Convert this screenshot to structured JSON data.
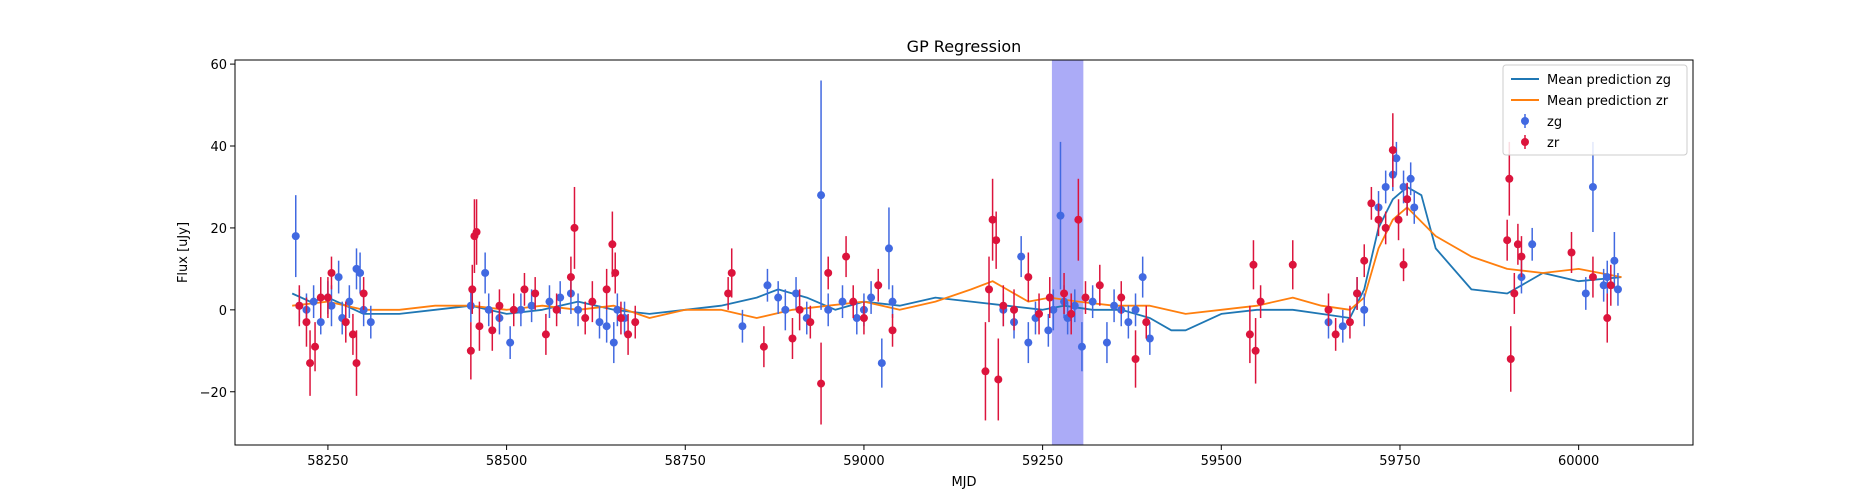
{
  "chart_data": {
    "type": "scatter",
    "title": "GP Regression",
    "xlabel": "MJD",
    "ylabel": "Flux [uJy]",
    "xlim": [
      58120,
      60160
    ],
    "ylim": [
      -33,
      61
    ],
    "x_ticks": [
      58250,
      58500,
      58750,
      59000,
      59250,
      59500,
      59750,
      60000
    ],
    "y_ticks": [
      -20,
      0,
      20,
      40,
      60
    ],
    "x_tick_labels": [
      "58250",
      "58500",
      "58750",
      "59000",
      "59250",
      "59500",
      "59750",
      "60000"
    ],
    "y_tick_labels": [
      "−20",
      "0",
      "20",
      "40",
      "60"
    ],
    "grid": false,
    "legend_position": "top-right",
    "shaded_region": {
      "x_start": 59263,
      "x_end": 59307,
      "color": "#a6a6f7"
    },
    "lines": [
      {
        "name": "Mean prediction zg",
        "color": "#1f77b4",
        "x": [
          58200,
          58225,
          58250,
          58275,
          58300,
          58350,
          58400,
          58450,
          58500,
          58550,
          58600,
          58650,
          58700,
          58750,
          58800,
          58850,
          58880,
          58920,
          58960,
          59000,
          59050,
          59100,
          59150,
          59200,
          59250,
          59280,
          59320,
          59360,
          59400,
          59430,
          59450,
          59500,
          59550,
          59600,
          59640,
          59680,
          59700,
          59720,
          59740,
          59760,
          59780,
          59800,
          59850,
          59900,
          59950,
          60000,
          60060
        ],
        "y": [
          4,
          2,
          3,
          1,
          -1,
          -1,
          0,
          1,
          -1,
          0,
          2,
          0,
          -1,
          0,
          1,
          3,
          5,
          3,
          0,
          2,
          1,
          3,
          2,
          1,
          0,
          1,
          0,
          0,
          -2,
          -5,
          -5,
          -1,
          0,
          0,
          -1,
          -2,
          5,
          20,
          27,
          30,
          28,
          15,
          5,
          4,
          9,
          7,
          8
        ]
      },
      {
        "name": "Mean prediction zr",
        "color": "#ff7f0e",
        "x": [
          58200,
          58250,
          58300,
          58350,
          58400,
          58450,
          58500,
          58550,
          58600,
          58650,
          58700,
          58750,
          58800,
          58850,
          58900,
          58950,
          59000,
          59050,
          59100,
          59150,
          59180,
          59200,
          59230,
          59260,
          59300,
          59350,
          59400,
          59450,
          59500,
          59550,
          59600,
          59640,
          59680,
          59700,
          59720,
          59740,
          59760,
          59800,
          59850,
          59900,
          59950,
          60000,
          60060
        ],
        "y": [
          1,
          2,
          0,
          0,
          1,
          1,
          0,
          1,
          0,
          1,
          -2,
          0,
          0,
          -2,
          0,
          1,
          2,
          0,
          2,
          5,
          7,
          5,
          2,
          3,
          2,
          1,
          1,
          -1,
          0,
          1,
          3,
          1,
          0,
          3,
          15,
          22,
          25,
          18,
          13,
          10,
          9,
          10,
          8
        ]
      }
    ],
    "series": [
      {
        "name": "zg",
        "color": "#4169e1",
        "points": [
          [
            58205,
            18,
            10
          ],
          [
            58210,
            1,
            4
          ],
          [
            58220,
            0,
            4
          ],
          [
            58230,
            2,
            4
          ],
          [
            58240,
            -3,
            3
          ],
          [
            58250,
            3,
            4
          ],
          [
            58255,
            1,
            5
          ],
          [
            58265,
            8,
            4
          ],
          [
            58270,
            -2,
            4
          ],
          [
            58280,
            2,
            4
          ],
          [
            58290,
            10,
            5
          ],
          [
            58295,
            9,
            5
          ],
          [
            58300,
            0,
            4
          ],
          [
            58310,
            -3,
            4
          ],
          [
            58450,
            1,
            4
          ],
          [
            58470,
            9,
            5
          ],
          [
            58475,
            0,
            4
          ],
          [
            58490,
            -2,
            4
          ],
          [
            58505,
            -8,
            4
          ],
          [
            58520,
            0,
            4
          ],
          [
            58535,
            1,
            4
          ],
          [
            58560,
            2,
            4
          ],
          [
            58575,
            3,
            4
          ],
          [
            58590,
            4,
            5
          ],
          [
            58600,
            0,
            4
          ],
          [
            58630,
            -3,
            4
          ],
          [
            58640,
            -4,
            4
          ],
          [
            58650,
            -8,
            5
          ],
          [
            58655,
            0,
            4
          ],
          [
            58665,
            -2,
            4
          ],
          [
            58830,
            -4,
            4
          ],
          [
            58865,
            6,
            4
          ],
          [
            58880,
            3,
            4
          ],
          [
            58890,
            0,
            5
          ],
          [
            58905,
            4,
            4
          ],
          [
            58920,
            -2,
            4
          ],
          [
            58940,
            28,
            28
          ],
          [
            58950,
            0,
            4
          ],
          [
            58970,
            2,
            4
          ],
          [
            58990,
            -2,
            4
          ],
          [
            59000,
            0,
            4
          ],
          [
            59010,
            3,
            4
          ],
          [
            59025,
            -13,
            6
          ],
          [
            59035,
            15,
            10
          ],
          [
            59040,
            2,
            4
          ],
          [
            59195,
            0,
            4
          ],
          [
            59210,
            -3,
            4
          ],
          [
            59220,
            13,
            5
          ],
          [
            59230,
            -8,
            5
          ],
          [
            59240,
            -2,
            4
          ],
          [
            59258,
            -5,
            4
          ],
          [
            59265,
            0,
            5
          ],
          [
            59275,
            23,
            18
          ],
          [
            59280,
            2,
            4
          ],
          [
            59285,
            -2,
            4
          ],
          [
            59295,
            1,
            4
          ],
          [
            59305,
            -9,
            6
          ],
          [
            59320,
            2,
            4
          ],
          [
            59340,
            -8,
            5
          ],
          [
            59350,
            1,
            4
          ],
          [
            59360,
            0,
            4
          ],
          [
            59370,
            -3,
            4
          ],
          [
            59380,
            0,
            4
          ],
          [
            59390,
            8,
            5
          ],
          [
            59400,
            -7,
            4
          ],
          [
            59650,
            -3,
            4
          ],
          [
            59670,
            -4,
            4
          ],
          [
            59690,
            4,
            4
          ],
          [
            59700,
            0,
            4
          ],
          [
            59720,
            25,
            4
          ],
          [
            59730,
            30,
            4
          ],
          [
            59740,
            33,
            4
          ],
          [
            59745,
            37,
            4
          ],
          [
            59755,
            30,
            4
          ],
          [
            59760,
            27,
            4
          ],
          [
            59765,
            32,
            4
          ],
          [
            59770,
            25,
            4
          ],
          [
            59920,
            8,
            4
          ],
          [
            59935,
            16,
            4
          ],
          [
            60010,
            4,
            4
          ],
          [
            60020,
            30,
            11
          ],
          [
            60035,
            6,
            4
          ],
          [
            60040,
            8,
            4
          ],
          [
            60050,
            12,
            7
          ],
          [
            60055,
            5,
            4
          ]
        ]
      },
      {
        "name": "zr",
        "color": "#dc143c",
        "points": [
          [
            58210,
            1,
            5
          ],
          [
            58220,
            -3,
            6
          ],
          [
            58225,
            -13,
            8
          ],
          [
            58232,
            -9,
            6
          ],
          [
            58240,
            3,
            5
          ],
          [
            58250,
            3,
            5
          ],
          [
            58255,
            9,
            4
          ],
          [
            58275,
            -3,
            5
          ],
          [
            58285,
            -6,
            5
          ],
          [
            58290,
            -13,
            8
          ],
          [
            58300,
            4,
            4
          ],
          [
            58450,
            -10,
            7
          ],
          [
            58452,
            5,
            6
          ],
          [
            58455,
            18,
            9
          ],
          [
            58458,
            19,
            8
          ],
          [
            58462,
            -4,
            6
          ],
          [
            58480,
            -5,
            5
          ],
          [
            58490,
            1,
            4
          ],
          [
            58510,
            0,
            4
          ],
          [
            58525,
            5,
            4
          ],
          [
            58540,
            4,
            4
          ],
          [
            58555,
            -6,
            5
          ],
          [
            58570,
            0,
            4
          ],
          [
            58590,
            8,
            5
          ],
          [
            58595,
            20,
            10
          ],
          [
            58610,
            -2,
            4
          ],
          [
            58620,
            2,
            5
          ],
          [
            58640,
            5,
            5
          ],
          [
            58648,
            16,
            8
          ],
          [
            58652,
            9,
            5
          ],
          [
            58660,
            -2,
            4
          ],
          [
            58670,
            -6,
            5
          ],
          [
            58680,
            -3,
            4
          ],
          [
            58810,
            4,
            4
          ],
          [
            58815,
            9,
            6
          ],
          [
            58860,
            -9,
            5
          ],
          [
            58900,
            -7,
            5
          ],
          [
            58910,
            0,
            5
          ],
          [
            58925,
            -3,
            4
          ],
          [
            58940,
            -18,
            10
          ],
          [
            58950,
            9,
            4
          ],
          [
            58975,
            13,
            5
          ],
          [
            58985,
            2,
            4
          ],
          [
            59000,
            -2,
            4
          ],
          [
            59020,
            6,
            4
          ],
          [
            59040,
            -5,
            4
          ],
          [
            59170,
            -15,
            12
          ],
          [
            59175,
            5,
            8
          ],
          [
            59180,
            22,
            10
          ],
          [
            59185,
            17,
            7
          ],
          [
            59188,
            -17,
            10
          ],
          [
            59195,
            1,
            5
          ],
          [
            59210,
            0,
            5
          ],
          [
            59230,
            8,
            6
          ],
          [
            59245,
            -1,
            5
          ],
          [
            59260,
            3,
            5
          ],
          [
            59280,
            4,
            5
          ],
          [
            59290,
            -1,
            5
          ],
          [
            59300,
            22,
            10
          ],
          [
            59310,
            3,
            4
          ],
          [
            59330,
            6,
            5
          ],
          [
            59360,
            3,
            4
          ],
          [
            59380,
            -12,
            7
          ],
          [
            59395,
            -3,
            4
          ],
          [
            59540,
            -6,
            7
          ],
          [
            59545,
            11,
            6
          ],
          [
            59548,
            -10,
            8
          ],
          [
            59555,
            2,
            4
          ],
          [
            59600,
            11,
            6
          ],
          [
            59650,
            0,
            4
          ],
          [
            59660,
            -6,
            4
          ],
          [
            59680,
            -3,
            4
          ],
          [
            59690,
            4,
            4
          ],
          [
            59700,
            12,
            4
          ],
          [
            59710,
            26,
            4
          ],
          [
            59720,
            22,
            4
          ],
          [
            59730,
            20,
            4
          ],
          [
            59740,
            39,
            9
          ],
          [
            59748,
            22,
            5
          ],
          [
            59755,
            11,
            4
          ],
          [
            59760,
            27,
            4
          ],
          [
            59900,
            17,
            5
          ],
          [
            59903,
            32,
            9
          ],
          [
            59905,
            -12,
            8
          ],
          [
            59910,
            4,
            5
          ],
          [
            59915,
            16,
            5
          ],
          [
            59920,
            13,
            5
          ],
          [
            59990,
            14,
            5
          ],
          [
            60020,
            8,
            5
          ],
          [
            60040,
            -2,
            6
          ],
          [
            60045,
            6,
            5
          ]
        ]
      }
    ],
    "legend": [
      "Mean prediction zg",
      "Mean prediction zr",
      "zg",
      "zr"
    ]
  }
}
